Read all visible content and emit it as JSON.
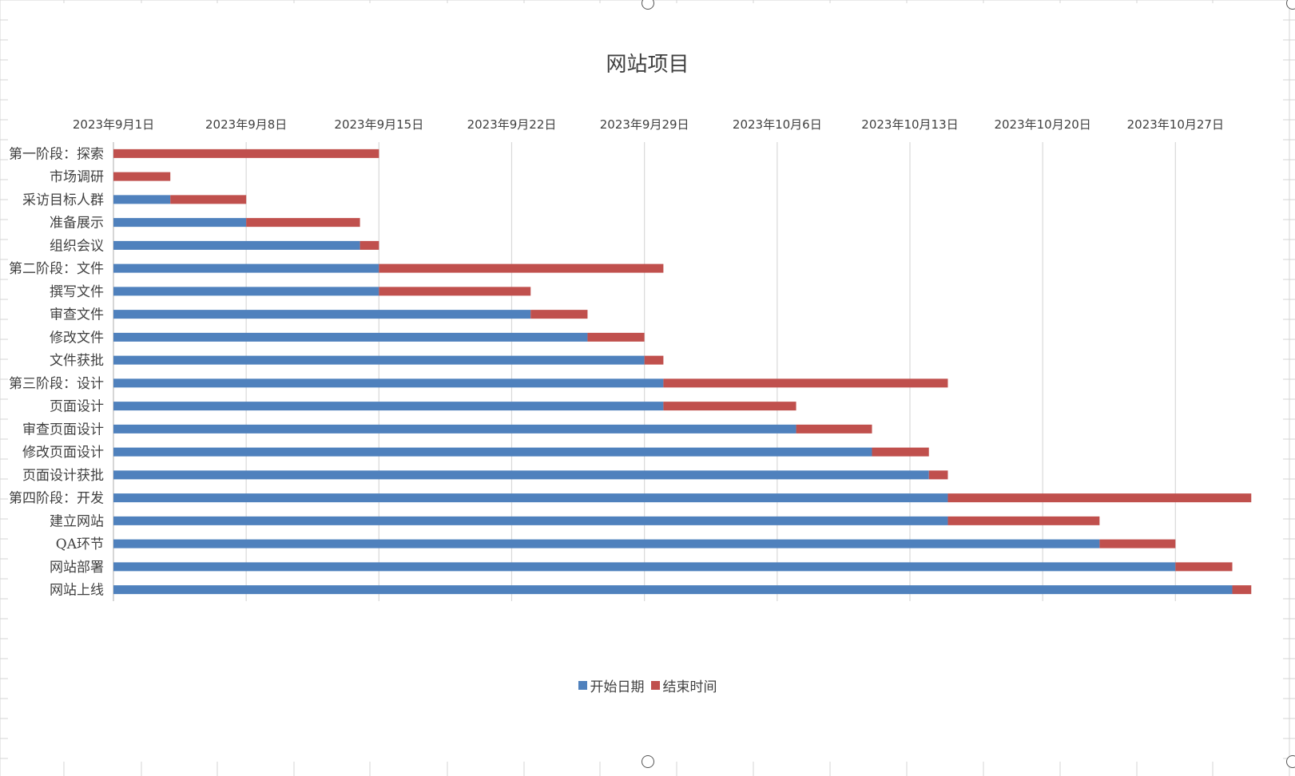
{
  "chart_data": {
    "type": "bar",
    "orientation": "horizontal",
    "stacked": true,
    "title": "网站项目",
    "categories": [
      "第一阶段：探索",
      "市场调研",
      "采访目标人群",
      "准备展示",
      "组织会议",
      "第二阶段：文件",
      "撰写文件",
      "审查文件",
      "修改文件",
      "文件获批",
      "第三阶段：设计",
      "页面设计",
      "审查页面设计",
      "修改页面设计",
      "页面设计获批",
      "第四阶段：开发",
      "建立网站",
      "QA环节",
      "网站部署",
      "网站上线"
    ],
    "series": [
      {
        "name": "开始日期",
        "color": "#4f81bd",
        "values": [
          "2023-09-01",
          "2023-09-01",
          "2023-09-04",
          "2023-09-08",
          "2023-09-14",
          "2023-09-15",
          "2023-09-15",
          "2023-09-23",
          "2023-09-26",
          "2023-09-29",
          "2023-09-30",
          "2023-09-30",
          "2023-10-07",
          "2023-10-11",
          "2023-10-14",
          "2023-10-15",
          "2023-10-15",
          "2023-10-23",
          "2023-10-27",
          "2023-10-30"
        ]
      },
      {
        "name": "结束时间",
        "color": "#c0504d",
        "values": [
          "2023-09-15",
          "2023-09-04",
          "2023-09-08",
          "2023-09-14",
          "2023-09-15",
          "2023-09-30",
          "2023-09-23",
          "2023-09-26",
          "2023-09-29",
          "2023-09-30",
          "2023-10-15",
          "2023-10-07",
          "2023-10-11",
          "2023-10-14",
          "2023-10-15",
          "2023-10-31",
          "2023-10-23",
          "2023-10-27",
          "2023-10-30",
          "2023-10-31"
        ]
      }
    ],
    "x_axis": {
      "position": "top",
      "type": "date",
      "min": "2023-09-01",
      "max": "2023-11-01",
      "tick_values": [
        "2023-09-01",
        "2023-09-08",
        "2023-09-15",
        "2023-09-22",
        "2023-09-29",
        "2023-10-06",
        "2023-10-13",
        "2023-10-20",
        "2023-10-27"
      ],
      "tick_labels": [
        "2023年9月1日",
        "2023年9月8日",
        "2023年9月15日",
        "2023年9月22日",
        "2023年9月29日",
        "2023年10月6日",
        "2023年10月13日",
        "2023年10月20日",
        "2023年10月27日"
      ]
    },
    "grid": true,
    "legend": "bottom"
  }
}
